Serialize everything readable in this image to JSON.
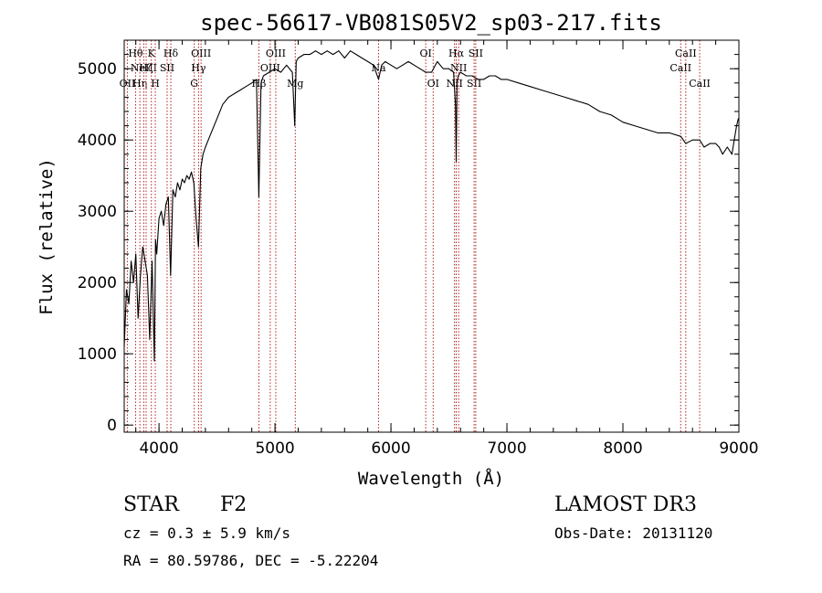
{
  "chart_data": {
    "type": "line",
    "title": "spec-56617-VB081S05V2_sp03-217.fits",
    "xlabel": "Wavelength (Å)",
    "ylabel": "Flux (relative)",
    "xlim": [
      3700,
      9000
    ],
    "ylim": [
      -100,
      5400
    ],
    "xticks": [
      4000,
      5000,
      6000,
      7000,
      8000,
      9000
    ],
    "yticks": [
      0,
      1000,
      2000,
      3000,
      4000,
      5000
    ],
    "series": [
      {
        "name": "flux",
        "color": "#000000",
        "x": [
          3700,
          3720,
          3740,
          3760,
          3780,
          3800,
          3820,
          3840,
          3860,
          3880,
          3900,
          3920,
          3940,
          3960,
          3970,
          3980,
          4000,
          4020,
          4040,
          4060,
          4080,
          4100,
          4120,
          4140,
          4160,
          4180,
          4200,
          4220,
          4240,
          4260,
          4280,
          4300,
          4320,
          4340,
          4360,
          4380,
          4400,
          4450,
          4500,
          4550,
          4600,
          4650,
          4700,
          4750,
          4800,
          4840,
          4861,
          4880,
          4900,
          4950,
          5000,
          5050,
          5100,
          5150,
          5170,
          5183,
          5200,
          5250,
          5300,
          5350,
          5400,
          5450,
          5500,
          5550,
          5600,
          5650,
          5700,
          5750,
          5800,
          5850,
          5893,
          5920,
          5950,
          6000,
          6050,
          6100,
          6150,
          6200,
          6250,
          6300,
          6350,
          6400,
          6450,
          6500,
          6540,
          6556,
          6563,
          6570,
          6580,
          6600,
          6650,
          6700,
          6750,
          6800,
          6850,
          6900,
          6950,
          7000,
          7100,
          7200,
          7300,
          7400,
          7500,
          7600,
          7700,
          7800,
          7900,
          8000,
          8100,
          8200,
          8300,
          8400,
          8500,
          8542,
          8600,
          8662,
          8700,
          8750,
          8800,
          8830,
          8860,
          8900,
          8940,
          8960,
          8980,
          8995
        ],
        "y": [
          1100,
          1900,
          1700,
          2300,
          2000,
          2400,
          1500,
          2100,
          2500,
          2300,
          2100,
          1200,
          2300,
          900,
          2600,
          2400,
          2900,
          3000,
          2800,
          3100,
          3200,
          2100,
          3300,
          3200,
          3400,
          3300,
          3450,
          3400,
          3500,
          3450,
          3550,
          3400,
          2900,
          2500,
          3600,
          3800,
          3900,
          4100,
          4300,
          4500,
          4600,
          4650,
          4700,
          4750,
          4800,
          4850,
          3200,
          4800,
          4900,
          4950,
          5000,
          4950,
          5050,
          4950,
          4200,
          5100,
          5150,
          5200,
          5200,
          5250,
          5200,
          5250,
          5200,
          5250,
          5150,
          5250,
          5200,
          5150,
          5100,
          5050,
          4850,
          5050,
          5100,
          5050,
          5000,
          5050,
          5100,
          5050,
          5000,
          4950,
          4950,
          5100,
          5000,
          5000,
          4950,
          4500,
          3700,
          4800,
          4900,
          4950,
          4900,
          4900,
          4850,
          4850,
          4900,
          4900,
          4850,
          4850,
          4800,
          4750,
          4700,
          4650,
          4600,
          4550,
          4500,
          4400,
          4350,
          4250,
          4200,
          4150,
          4100,
          4100,
          4050,
          3950,
          4000,
          4000,
          3900,
          3950,
          3950,
          3900,
          3800,
          3900,
          3800,
          4000,
          4200,
          4300
        ]
      }
    ],
    "lines": [
      {
        "wl": 3727,
        "label": "OII",
        "row": 3
      },
      {
        "wl": 3798,
        "label": "Hθ",
        "row": 1
      },
      {
        "wl": 3835,
        "label": "Hη",
        "row": 3
      },
      {
        "wl": 3869,
        "label": "NeIII",
        "row": 2
      },
      {
        "wl": 3889,
        "label": "Hζ",
        "row": 2
      },
      {
        "wl": 3934,
        "label": "K",
        "row": 1
      },
      {
        "wl": 3968,
        "label": "H",
        "row": 3
      },
      {
        "wl": 4070,
        "label": "SII",
        "row": 2
      },
      {
        "wl": 4102,
        "label": "Hδ",
        "row": 1
      },
      {
        "wl": 4304,
        "label": "G",
        "row": 3
      },
      {
        "wl": 4341,
        "label": "Hγ",
        "row": 2
      },
      {
        "wl": 4363,
        "label": "OIII",
        "row": 1
      },
      {
        "wl": 4861,
        "label": "Hβ",
        "row": 3
      },
      {
        "wl": 4959,
        "label": "OIII",
        "row": 2
      },
      {
        "wl": 5007,
        "label": "OIII",
        "row": 1
      },
      {
        "wl": 5175,
        "label": "Mg",
        "row": 3
      },
      {
        "wl": 5893,
        "label": "Na",
        "row": 2
      },
      {
        "wl": 6300,
        "label": "OI",
        "row": 1
      },
      {
        "wl": 6364,
        "label": "OI",
        "row": 3
      },
      {
        "wl": 6548,
        "label": "NII",
        "row": 3
      },
      {
        "wl": 6563,
        "label": "Hα",
        "row": 1
      },
      {
        "wl": 6584,
        "label": "NII",
        "row": 2
      },
      {
        "wl": 6717,
        "label": "SII",
        "row": 3
      },
      {
        "wl": 6731,
        "label": "SII",
        "row": 1
      },
      {
        "wl": 8498,
        "label": "CaII",
        "row": 2
      },
      {
        "wl": 8542,
        "label": "CaII",
        "row": 1
      },
      {
        "wl": 8662,
        "label": "CaII",
        "row": 3
      }
    ],
    "line_color": "#b22222",
    "axis_color": "#000000"
  },
  "info": {
    "object_class": "STAR",
    "subclass": "F2",
    "survey": "LAMOST DR3",
    "redshift": "cz = 0.3 ± 5.9 km/s",
    "obs_date": "Obs-Date: 20131120",
    "coords": "RA =  80.59786, DEC =  -5.22204"
  }
}
